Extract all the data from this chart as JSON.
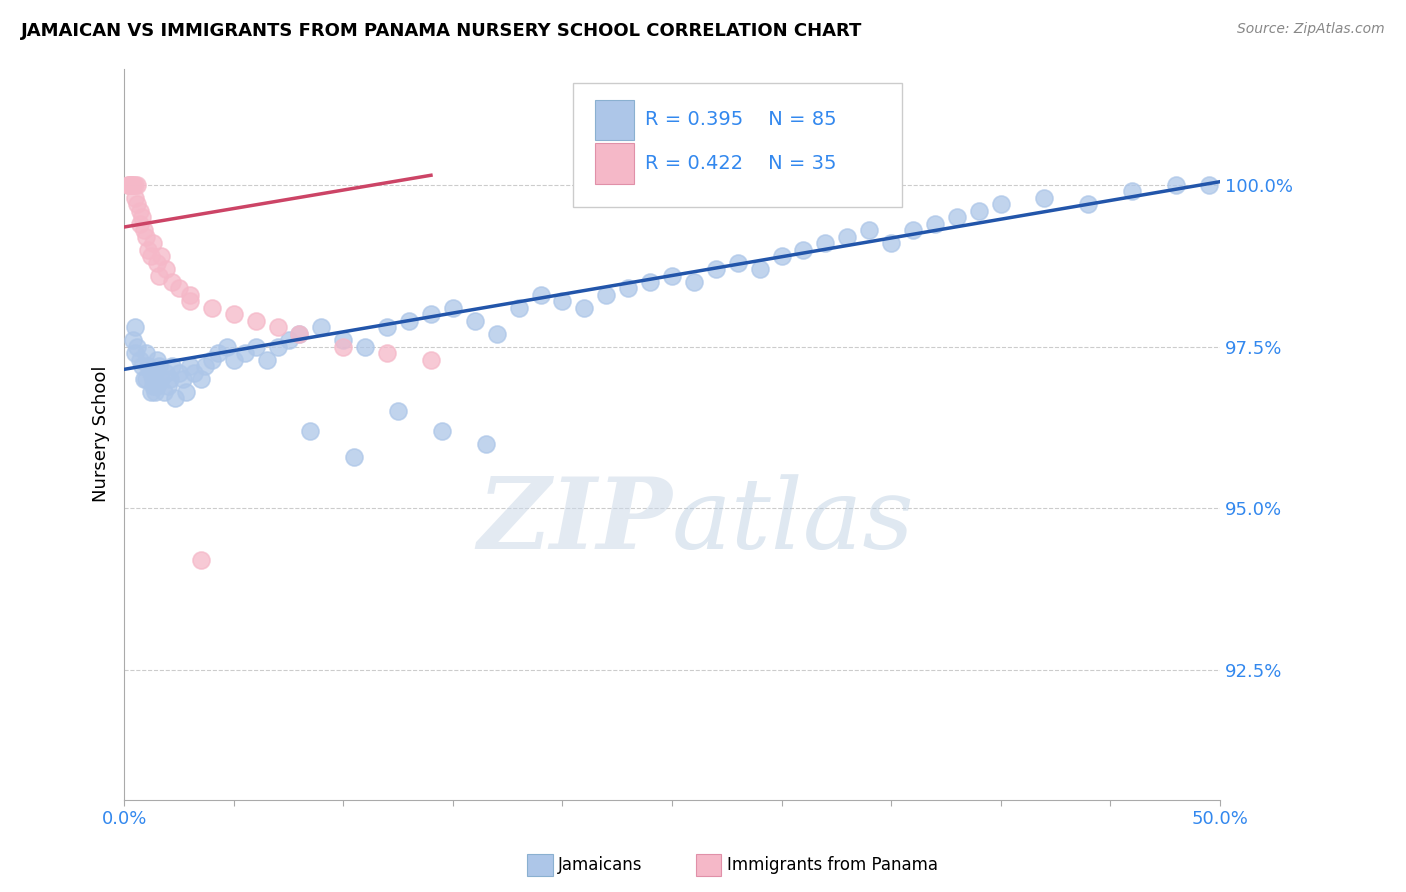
{
  "title": "JAMAICAN VS IMMIGRANTS FROM PANAMA NURSERY SCHOOL CORRELATION CHART",
  "source": "Source: ZipAtlas.com",
  "ylabel": "Nursery School",
  "xlim": [
    0.0,
    50.0
  ],
  "ylim": [
    90.5,
    101.8
  ],
  "yticks": [
    92.5,
    95.0,
    97.5,
    100.0
  ],
  "ytick_labels": [
    "92.5%",
    "95.0%",
    "97.5%",
    "100.0%"
  ],
  "legend_blue_r": "R = 0.395",
  "legend_blue_n": "N = 85",
  "legend_pink_r": "R = 0.422",
  "legend_pink_n": "N = 35",
  "legend_label_blue": "Jamaicans",
  "legend_label_pink": "Immigrants from Panama",
  "blue_color": "#adc6e8",
  "blue_line_color": "#2255aa",
  "pink_color": "#f5b8c8",
  "pink_line_color": "#cc4466",
  "watermark_zip": "ZIP",
  "watermark_atlas": "atlas",
  "scatter_blue_x": [
    0.4,
    0.5,
    0.5,
    0.6,
    0.7,
    0.8,
    0.9,
    1.0,
    1.0,
    1.1,
    1.2,
    1.2,
    1.3,
    1.3,
    1.4,
    1.4,
    1.5,
    1.5,
    1.6,
    1.7,
    1.8,
    1.9,
    2.0,
    2.1,
    2.2,
    2.3,
    2.5,
    2.7,
    2.8,
    3.0,
    3.2,
    3.5,
    3.7,
    4.0,
    4.3,
    4.7,
    5.0,
    5.5,
    6.0,
    6.5,
    7.0,
    7.5,
    8.0,
    9.0,
    10.0,
    11.0,
    12.0,
    13.0,
    14.0,
    15.0,
    16.0,
    17.0,
    18.0,
    19.0,
    20.0,
    21.0,
    22.0,
    23.0,
    24.0,
    25.0,
    26.0,
    27.0,
    28.0,
    29.0,
    30.0,
    31.0,
    32.0,
    33.0,
    34.0,
    35.0,
    36.0,
    37.0,
    38.0,
    39.0,
    40.0,
    42.0,
    44.0,
    46.0,
    48.0,
    49.5,
    8.5,
    10.5,
    12.5,
    14.5,
    16.5
  ],
  "scatter_blue_y": [
    97.6,
    97.8,
    97.4,
    97.5,
    97.3,
    97.2,
    97.0,
    97.4,
    97.0,
    97.2,
    97.1,
    96.8,
    97.0,
    96.9,
    97.1,
    96.8,
    97.3,
    96.9,
    97.2,
    97.0,
    96.8,
    97.1,
    96.9,
    97.0,
    97.2,
    96.7,
    97.1,
    97.0,
    96.8,
    97.2,
    97.1,
    97.0,
    97.2,
    97.3,
    97.4,
    97.5,
    97.3,
    97.4,
    97.5,
    97.3,
    97.5,
    97.6,
    97.7,
    97.8,
    97.6,
    97.5,
    97.8,
    97.9,
    98.0,
    98.1,
    97.9,
    97.7,
    98.1,
    98.3,
    98.2,
    98.1,
    98.3,
    98.4,
    98.5,
    98.6,
    98.5,
    98.7,
    98.8,
    98.7,
    98.9,
    99.0,
    99.1,
    99.2,
    99.3,
    99.1,
    99.3,
    99.4,
    99.5,
    99.6,
    99.7,
    99.8,
    99.7,
    99.9,
    100.0,
    100.0,
    96.2,
    95.8,
    96.5,
    96.2,
    96.0
  ],
  "scatter_pink_x": [
    0.15,
    0.2,
    0.25,
    0.3,
    0.35,
    0.4,
    0.5,
    0.5,
    0.6,
    0.6,
    0.7,
    0.7,
    0.8,
    0.9,
    1.0,
    1.1,
    1.2,
    1.3,
    1.5,
    1.6,
    1.7,
    1.9,
    2.2,
    2.5,
    3.0,
    3.5,
    4.0,
    5.0,
    6.0,
    7.0,
    8.0,
    10.0,
    12.0,
    14.0,
    3.0
  ],
  "scatter_pink_y": [
    100.0,
    100.0,
    100.0,
    100.0,
    100.0,
    100.0,
    100.0,
    99.8,
    99.7,
    100.0,
    99.6,
    99.4,
    99.5,
    99.3,
    99.2,
    99.0,
    98.9,
    99.1,
    98.8,
    98.6,
    98.9,
    98.7,
    98.5,
    98.4,
    98.3,
    94.2,
    98.1,
    98.0,
    97.9,
    97.8,
    97.7,
    97.5,
    97.4,
    97.3,
    98.2
  ],
  "blue_line_x": [
    0.0,
    50.0
  ],
  "blue_line_y": [
    97.15,
    100.05
  ],
  "pink_line_x": [
    0.0,
    14.0
  ],
  "pink_line_y": [
    99.35,
    100.15
  ],
  "xtick_positions": [
    0.0,
    5.0,
    10.0,
    15.0,
    20.0,
    25.0,
    30.0,
    35.0,
    40.0,
    45.0,
    50.0
  ],
  "xtick_show": [
    "0.0%",
    "",
    "",
    "",
    "",
    "",
    "",
    "",
    "",
    "",
    "50.0%"
  ]
}
